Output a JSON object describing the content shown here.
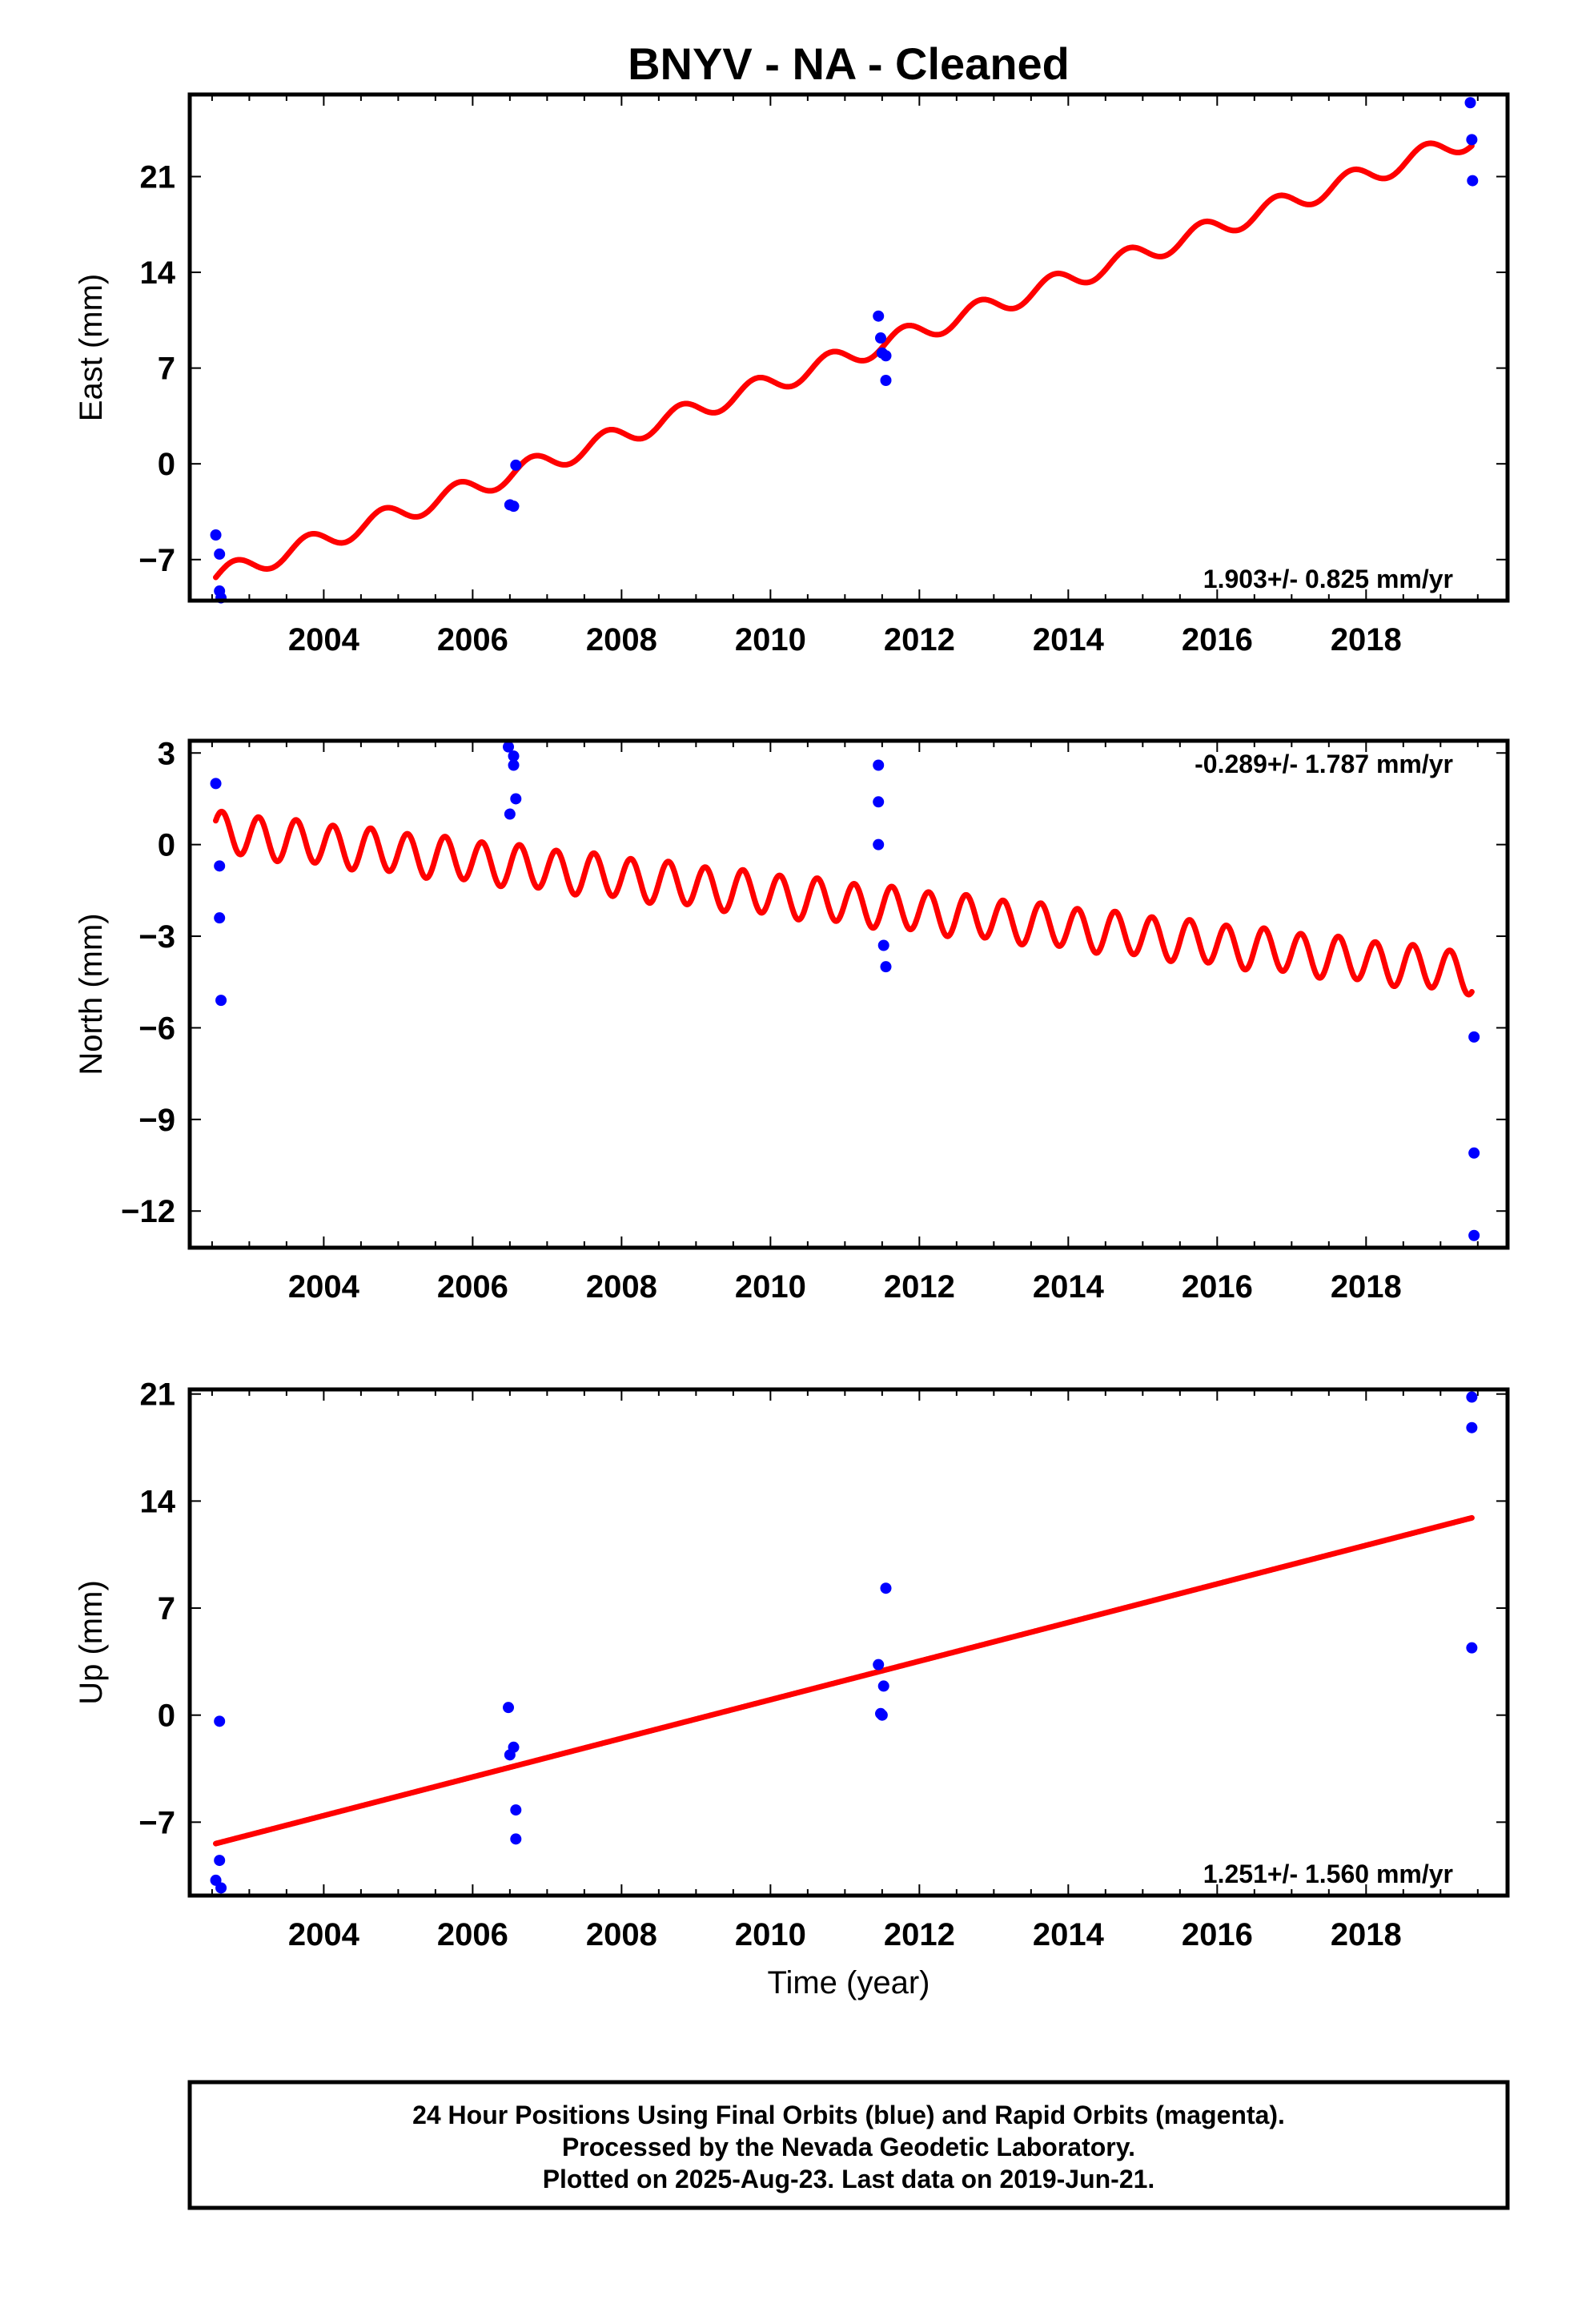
{
  "title": "BNYV  - NA - Cleaned",
  "footer": {
    "lines": [
      "24 Hour Positions Using Final Orbits (blue) and Rapid Orbits (magenta).",
      "Processed by the Nevada Geodetic Laboratory.",
      "Plotted on 2025-Aug-23. Last data on 2019-Jun-21."
    ]
  },
  "colors": {
    "data": "#0000ff",
    "model": "#ff0000",
    "frame": "#000000"
  },
  "chart_data": [
    {
      "type": "scatter",
      "ylabel": "East (mm)",
      "xlabel": "",
      "rate_label": "1.903+/- 0.825 mm/yr",
      "rate_position": "bottom-right",
      "xlim": [
        2002.2,
        2019.9
      ],
      "ylim": [
        -10,
        27
      ],
      "xticks": [
        2004,
        2006,
        2008,
        2010,
        2012,
        2014,
        2016,
        2018
      ],
      "xtick_labels": [
        "2004",
        "2006",
        "2008",
        "2010",
        "2012",
        "2014",
        "2016",
        "2018"
      ],
      "yticks": [
        -7,
        0,
        7,
        14,
        21
      ],
      "ytick_labels": [
        "−7",
        "0",
        "7",
        "14",
        "21"
      ],
      "grid": false,
      "series": [
        {
          "role": "data",
          "points": [
            [
              2002.55,
              -5.2
            ],
            [
              2002.6,
              -6.6
            ],
            [
              2002.6,
              -9.3
            ],
            [
              2002.62,
              -9.8
            ],
            [
              2006.5,
              -3.0
            ],
            [
              2006.55,
              -3.1
            ],
            [
              2006.58,
              -0.1
            ],
            [
              2011.45,
              10.8
            ],
            [
              2011.48,
              9.2
            ],
            [
              2011.5,
              8.1
            ],
            [
              2011.55,
              7.9
            ],
            [
              2011.55,
              6.1
            ],
            [
              2019.4,
              26.4
            ],
            [
              2019.42,
              23.7
            ],
            [
              2019.43,
              20.7
            ]
          ]
        },
        {
          "role": "model",
          "trend": {
            "t0": 2002.55,
            "y0": -8.3,
            "t1": 2019.42,
            "y1": 23.8
          },
          "seasonal": {
            "annual_amplitude": 0.75,
            "annual_phase": 0.0,
            "semiannual_amplitude": 0.0,
            "semiannual_phase": 0.0
          }
        }
      ]
    },
    {
      "type": "scatter",
      "ylabel": "North (mm)",
      "xlabel": "",
      "rate_label": "-0.289+/- 1.787 mm/yr",
      "rate_position": "top-right",
      "xlim": [
        2002.2,
        2019.9
      ],
      "ylim": [
        -13.2,
        3.4
      ],
      "xticks": [
        2004,
        2006,
        2008,
        2010,
        2012,
        2014,
        2016,
        2018
      ],
      "xtick_labels": [
        "2004",
        "2006",
        "2008",
        "2010",
        "2012",
        "2014",
        "2016",
        "2018"
      ],
      "yticks": [
        -12,
        -9,
        -6,
        -3,
        0,
        3
      ],
      "ytick_labels": [
        "−12",
        "−9",
        "−6",
        "−3",
        "0",
        "3"
      ],
      "grid": false,
      "series": [
        {
          "role": "data",
          "points": [
            [
              2002.55,
              2.0
            ],
            [
              2002.6,
              -0.7
            ],
            [
              2002.6,
              -2.4
            ],
            [
              2002.62,
              -5.1
            ],
            [
              2006.48,
              3.2
            ],
            [
              2006.5,
              1.0
            ],
            [
              2006.55,
              2.9
            ],
            [
              2006.55,
              2.6
            ],
            [
              2006.58,
              1.5
            ],
            [
              2011.45,
              2.6
            ],
            [
              2011.45,
              1.4
            ],
            [
              2011.45,
              0.0
            ],
            [
              2011.52,
              -3.3
            ],
            [
              2011.55,
              -4.0
            ],
            [
              2019.45,
              -6.3
            ],
            [
              2019.45,
              -10.1
            ],
            [
              2019.45,
              -12.8
            ]
          ]
        },
        {
          "role": "model",
          "trend": {
            "t0": 2002.55,
            "y0": 0.4,
            "t1": 2019.42,
            "y1": -4.2
          },
          "seasonal": {
            "annual_amplitude": 0.05,
            "annual_phase": 0.0,
            "semiannual_amplitude": 0.68,
            "semiannual_phase": 0.6
          }
        }
      ]
    },
    {
      "type": "scatter",
      "ylabel": "Up (mm)",
      "xlabel": "Time (year)",
      "rate_label": "1.251+/- 1.560 mm/yr",
      "rate_position": "bottom-right",
      "xlim": [
        2002.2,
        2019.9
      ],
      "ylim": [
        -11.8,
        21.3
      ],
      "xticks": [
        2004,
        2006,
        2008,
        2010,
        2012,
        2014,
        2016,
        2018
      ],
      "xtick_labels": [
        "2004",
        "2006",
        "2008",
        "2010",
        "2012",
        "2014",
        "2016",
        "2018"
      ],
      "yticks": [
        -7,
        0,
        7,
        14,
        21
      ],
      "ytick_labels": [
        "−7",
        "0",
        "7",
        "14",
        "21"
      ],
      "grid": false,
      "series": [
        {
          "role": "data",
          "points": [
            [
              2002.55,
              -10.8
            ],
            [
              2002.6,
              -0.4
            ],
            [
              2002.6,
              -9.5
            ],
            [
              2002.62,
              -11.3
            ],
            [
              2006.48,
              0.5
            ],
            [
              2006.5,
              -2.6
            ],
            [
              2006.55,
              -2.1
            ],
            [
              2006.58,
              -6.2
            ],
            [
              2006.58,
              -8.1
            ],
            [
              2011.45,
              3.3
            ],
            [
              2011.48,
              0.1
            ],
            [
              2011.5,
              0.0
            ],
            [
              2011.52,
              1.9
            ],
            [
              2011.55,
              8.3
            ],
            [
              2019.42,
              20.8
            ],
            [
              2019.42,
              18.8
            ],
            [
              2019.42,
              4.4
            ]
          ]
        },
        {
          "role": "model",
          "trend": {
            "t0": 2002.55,
            "y0": -8.4,
            "t1": 2019.42,
            "y1": 12.9
          },
          "seasonal": {
            "annual_amplitude": 0.0,
            "annual_phase": 0.0,
            "semiannual_amplitude": 0.0,
            "semiannual_phase": 0.0
          }
        }
      ]
    }
  ]
}
